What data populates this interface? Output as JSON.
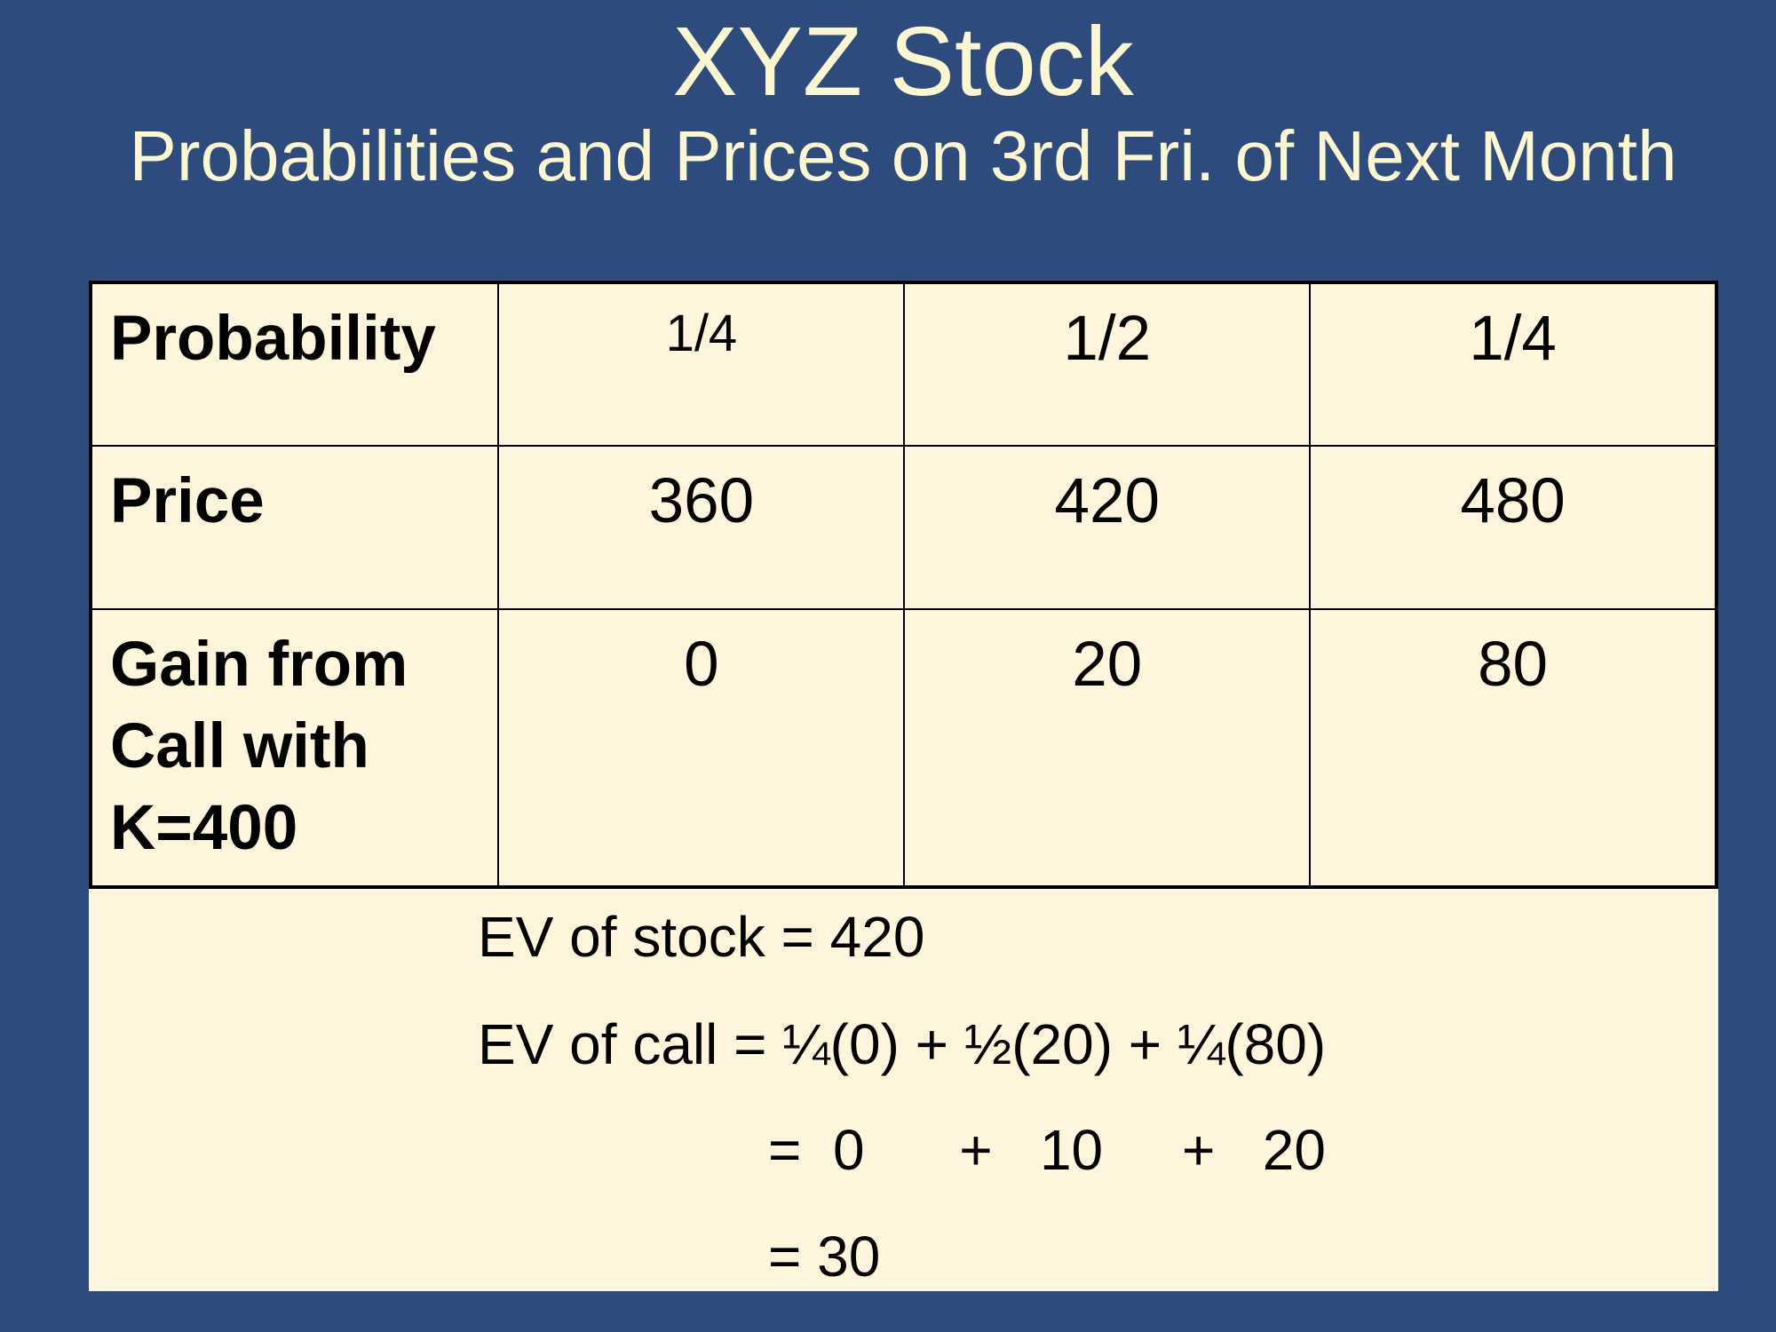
{
  "header": {
    "title": "XYZ Stock",
    "subtitle": "Probabilities and Prices on 3rd Fri. of Next Month"
  },
  "table": {
    "rows": [
      [
        "Probability",
        "1/4",
        "1/2",
        "1/4"
      ],
      [
        "Price",
        "360",
        "420",
        "480"
      ],
      [
        "Gain from Call with K=400",
        "0",
        "20",
        "80"
      ]
    ]
  },
  "notes": [
    "EV of stock = 420",
    "EV of call = ¼(0) + ½(20) + ¼(80)",
    "=  0      +   10     +   20",
    "= 30"
  ]
}
